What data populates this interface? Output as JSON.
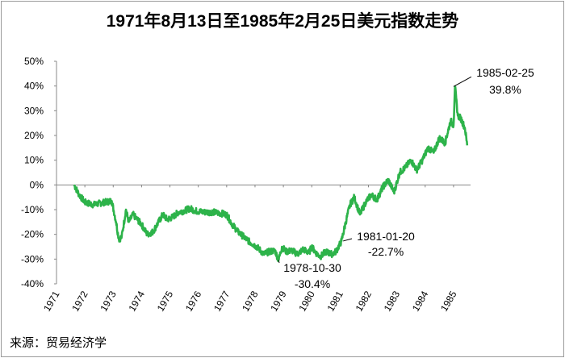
{
  "chart_data": {
    "type": "line",
    "title": "1971年8月13日至1985年2月25日美元指数走势",
    "source": "来源：贸易经济学",
    "ylim": [
      -40,
      50
    ],
    "y_ticks": [
      "50%",
      "40%",
      "30%",
      "20%",
      "10%",
      "0%",
      "-10%",
      "-20%",
      "-30%",
      "-40%"
    ],
    "x_ticks": [
      "1971",
      "1972",
      "1973",
      "1974",
      "1975",
      "1976",
      "1977",
      "1978",
      "1979",
      "1980",
      "1981",
      "1982",
      "1983",
      "1984",
      "1985"
    ],
    "line_color": "#2db34a",
    "series": [
      {
        "x": [
          1971.62,
          1971.8,
          1972.0,
          1972.3,
          1972.7,
          1972.95,
          1973.1,
          1973.2,
          1973.3,
          1973.45,
          1973.55,
          1973.7,
          1973.85,
          1974.0,
          1974.2,
          1974.4,
          1974.6,
          1974.75,
          1974.9,
          1975.1,
          1975.3,
          1975.5,
          1975.7,
          1975.9,
          1976.2,
          1976.5,
          1976.8,
          1977.0,
          1977.2,
          1977.4,
          1977.6,
          1977.8,
          1978.0,
          1978.15,
          1978.3,
          1978.5,
          1978.7,
          1978.83,
          1978.95,
          1979.1,
          1979.3,
          1979.5,
          1979.7,
          1979.9,
          1980.0,
          1980.15,
          1980.3,
          1980.5,
          1980.7,
          1980.85,
          1981.05,
          1981.2,
          1981.35,
          1981.5,
          1981.7,
          1981.9,
          1982.1,
          1982.3,
          1982.5,
          1982.7,
          1982.9,
          1983.1,
          1983.3,
          1983.5,
          1983.7,
          1983.9,
          1984.1,
          1984.3,
          1984.5,
          1984.7,
          1984.9,
          1985.0,
          1985.05,
          1985.15,
          1985.25,
          1985.4,
          1985.48
        ],
        "values": [
          0,
          -4,
          -7,
          -8,
          -7,
          -6.5,
          -15,
          -22,
          -21,
          -10,
          -15,
          -12,
          -14,
          -16,
          -20,
          -19,
          -15,
          -12,
          -14,
          -13,
          -11,
          -10.5,
          -9.5,
          -10.5,
          -11,
          -11,
          -11.5,
          -12,
          -16,
          -19,
          -21,
          -23,
          -24.5,
          -26,
          -28,
          -27,
          -26.5,
          -30.4,
          -25,
          -27,
          -26.5,
          -28,
          -26,
          -27.5,
          -25,
          -27.5,
          -29,
          -27,
          -28,
          -27,
          -22.7,
          -15,
          -8,
          -5,
          -12,
          -7,
          -4,
          -6,
          -1,
          2,
          -3,
          5,
          7,
          10,
          6,
          10,
          15,
          13,
          19,
          17,
          26,
          24,
          39.8,
          28,
          27,
          23,
          16
        ]
      }
    ],
    "annotations": [
      {
        "date": "1985-02-25",
        "value": "39.8%",
        "x": 1985.0,
        "y": 39.8
      },
      {
        "date": "1981-01-20",
        "value": "-22.7%",
        "x": 1981.05,
        "y": -22.7
      },
      {
        "date": "1978-10-30",
        "value": "-30.4%",
        "x": 1978.83,
        "y": -30.4
      }
    ]
  }
}
